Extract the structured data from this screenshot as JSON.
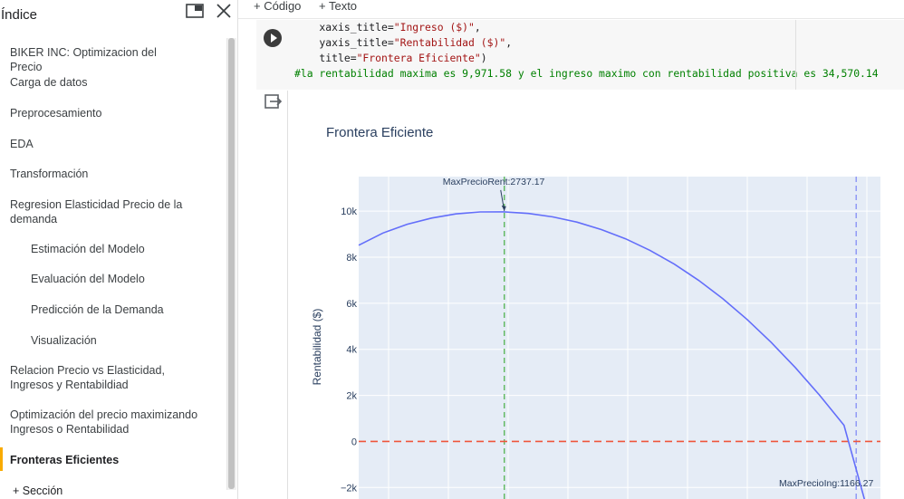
{
  "sidebar": {
    "title": "Índice",
    "items": [
      {
        "label": "BIKER INC: Optimizacion del Precio",
        "level": 1
      },
      {
        "label": "Carga de datos",
        "level": 1
      },
      {
        "label": "Preprocesamiento",
        "level": 1
      },
      {
        "label": "EDA",
        "level": 1
      },
      {
        "label": "Transformación",
        "level": 1
      },
      {
        "label": "Regresion Elasticidad Precio de la demanda",
        "level": 1
      },
      {
        "label": "Estimación del Modelo",
        "level": 2
      },
      {
        "label": "Evaluación del Modelo",
        "level": 2
      },
      {
        "label": "Predicción de la Demanda",
        "level": 2
      },
      {
        "label": "Visualización",
        "level": 2
      },
      {
        "label": "Relacion Precio vs Elasticidad, Ingresos y Rentabildiad",
        "level": 1
      },
      {
        "label": "Optimización del precio maximizando Ingresos o Rentabilidad",
        "level": 1
      },
      {
        "label": "Fronteras Eficientes",
        "level": 1,
        "active": true
      }
    ],
    "add_section": "+ Sección"
  },
  "toolbar": {
    "code_button": "+ Código",
    "text_button": "+ Texto"
  },
  "code": {
    "line1_key": "    xaxis_title=",
    "line1_val": "\"Ingreso ($)\"",
    "line1_end": ",",
    "line2_key": "    yaxis_title=",
    "line2_val": "\"Rentabilidad ($)\"",
    "line2_end": ",",
    "line3_key": "    title=",
    "line3_val": "\"Frontera Eficiente\"",
    "line3_end": ")",
    "comment": "#la rentabilidad maxima es 9,971.58 y el ingreso maximo con rentabilidad positiva es 34,570.14"
  },
  "colors": {
    "plot_bg": "#e5ecf6",
    "line": "#636efa",
    "green_dash": "#5cb85c",
    "red_dash": "#ef553b",
    "blue_dash": "#8a93f5"
  },
  "chart_data": {
    "type": "line",
    "title": "Frontera Eficiente",
    "ylabel": "Rentabilidad ($)",
    "xlabel": "",
    "y_ticks": [
      "10k",
      "8k",
      "6k",
      "4k",
      "2k",
      "0",
      "−2k"
    ],
    "ylim": [
      -2500,
      11500
    ],
    "series": [
      {
        "x": [
          0,
          2,
          4,
          6,
          8,
          10,
          12,
          14,
          16,
          18,
          20,
          22,
          24,
          26,
          28,
          30,
          32,
          34,
          36,
          38,
          40,
          41.7
        ],
        "y": [
          8520,
          9050,
          9430,
          9700,
          9880,
          9965,
          9971,
          9900,
          9750,
          9520,
          9200,
          8800,
          8300,
          7700,
          7000,
          6200,
          5300,
          4300,
          3200,
          2000,
          700,
          -2550
        ]
      }
    ],
    "max_rent_x": 12,
    "max_ing_x": 41,
    "annotations": [
      {
        "text": "MaxPrecioRent:2737.17",
        "x": 12,
        "y": 9971
      },
      {
        "text": "MaxPrecioIng:1166.27",
        "x": 41,
        "y": -2500
      }
    ],
    "zero_line": 0
  }
}
